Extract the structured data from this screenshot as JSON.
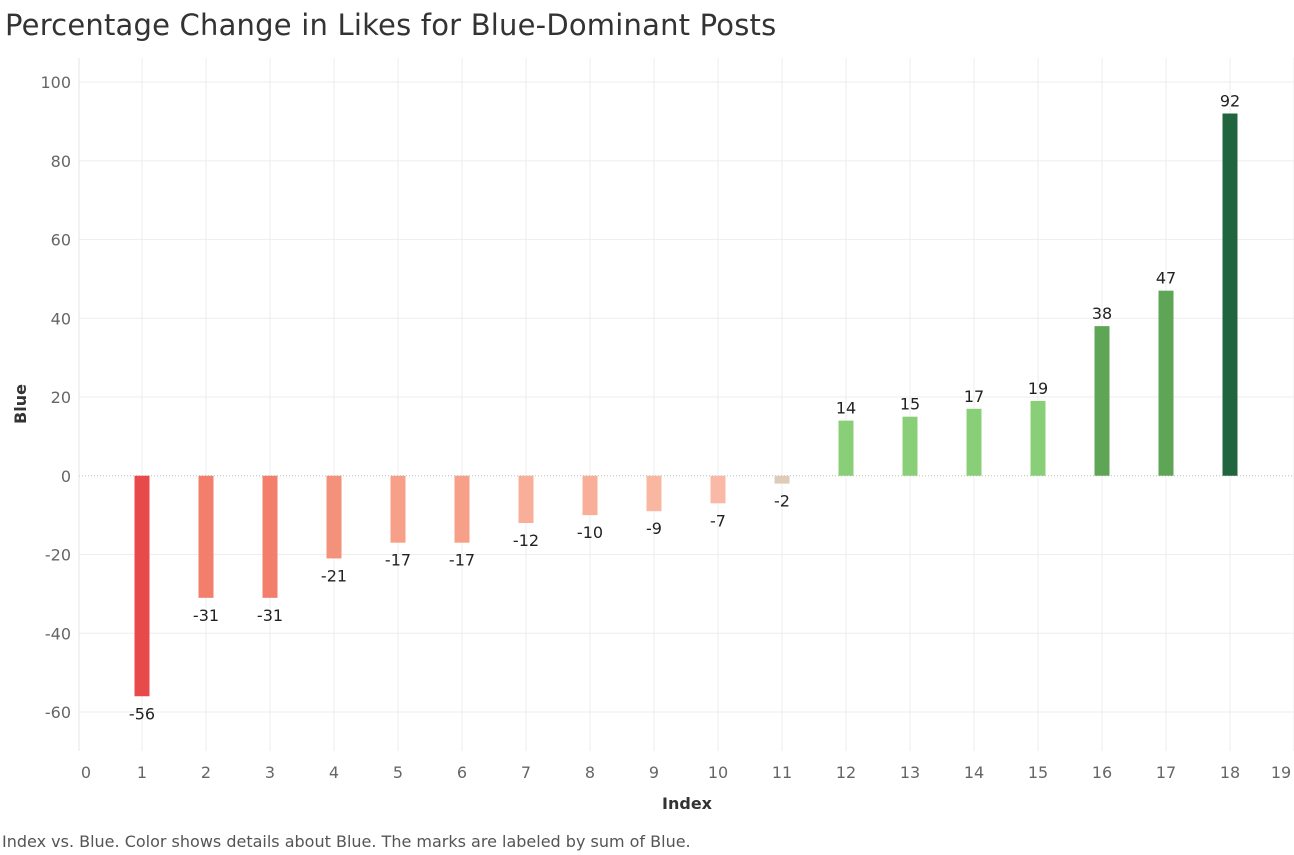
{
  "title": "Percentage Change in Likes for Blue-Dominant Posts",
  "caption": "Index vs. Blue.  Color shows details about Blue.  The marks are labeled by sum of Blue.",
  "chart_data": {
    "type": "bar",
    "title": "Percentage Change in Likes for Blue-Dominant Posts",
    "xlabel": "Index",
    "ylabel": "Blue",
    "x": [
      1,
      2,
      3,
      4,
      5,
      6,
      7,
      8,
      9,
      10,
      11,
      12,
      13,
      14,
      15,
      16,
      17,
      18
    ],
    "values": [
      -56,
      -31,
      -31,
      -21,
      -17,
      -17,
      -12,
      -10,
      -9,
      -7,
      -2,
      14,
      15,
      17,
      19,
      38,
      47,
      92
    ],
    "labels": [
      "-56",
      "-31",
      "-31",
      "-21",
      "-17",
      "-17",
      "-12",
      "-10",
      "-9",
      "-7",
      "-2",
      "14",
      "15",
      "17",
      "19",
      "38",
      "47",
      "92"
    ],
    "colors": [
      "#e8494a",
      "#f17f6b",
      "#f17f6b",
      "#f3917a",
      "#f6a08a",
      "#f6a08a",
      "#f8ae98",
      "#f8ae98",
      "#f9b7a2",
      "#fab9a6",
      "#dfcbba",
      "#88cf78",
      "#88cf78",
      "#88cf78",
      "#88cf78",
      "#5ea655",
      "#5ea655",
      "#20653d"
    ],
    "xlim": [
      0,
      19
    ],
    "ylim": [
      -70,
      100
    ],
    "xticks": [
      "0",
      "1",
      "2",
      "3",
      "4",
      "5",
      "6",
      "7",
      "8",
      "9",
      "10",
      "11",
      "12",
      "13",
      "14",
      "15",
      "16",
      "17",
      "18",
      "19"
    ],
    "yticks": [
      "100",
      "80",
      "60",
      "40",
      "20",
      "0",
      "-20",
      "-40",
      "-60"
    ],
    "grid": true,
    "legend": "none"
  }
}
